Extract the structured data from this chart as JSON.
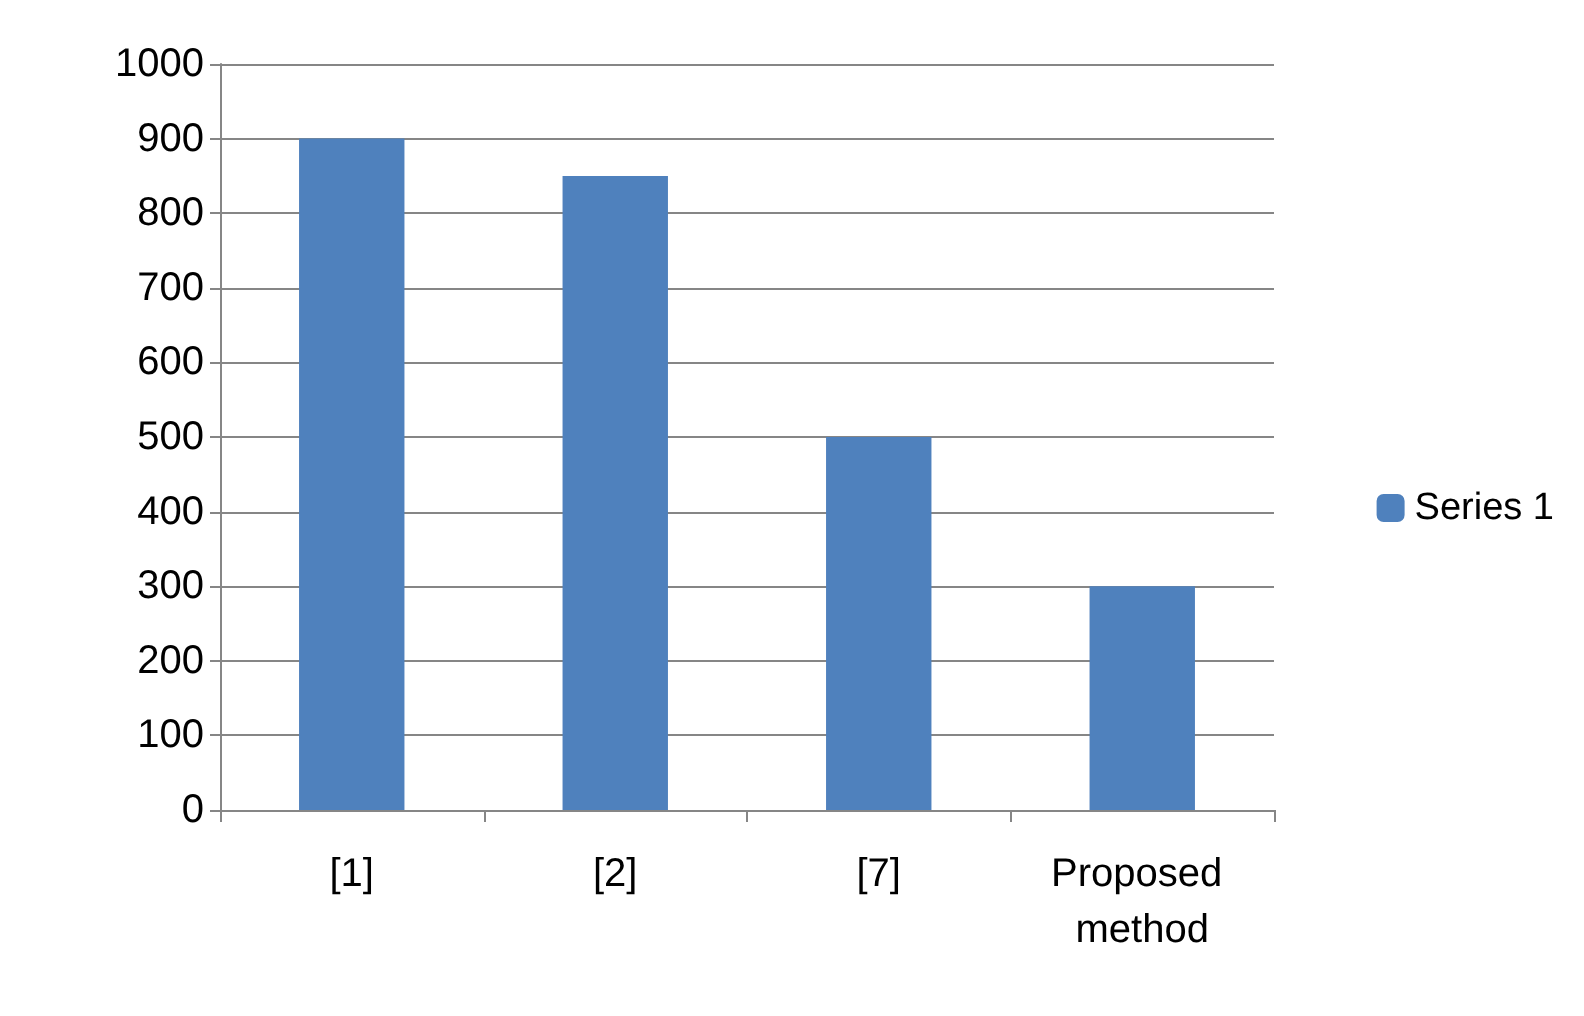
{
  "chart_data": {
    "type": "bar",
    "categories": [
      "[1]",
      "[2]",
      "[7]",
      "Proposed method"
    ],
    "series": [
      {
        "name": "Series 1",
        "color": "#4f81bd",
        "values": [
          900,
          850,
          500,
          300
        ]
      }
    ],
    "ylim": [
      0,
      1000
    ],
    "yticks": [
      0,
      100,
      200,
      300,
      400,
      500,
      600,
      700,
      800,
      900,
      1000
    ],
    "grid": "y",
    "legend": "right"
  }
}
